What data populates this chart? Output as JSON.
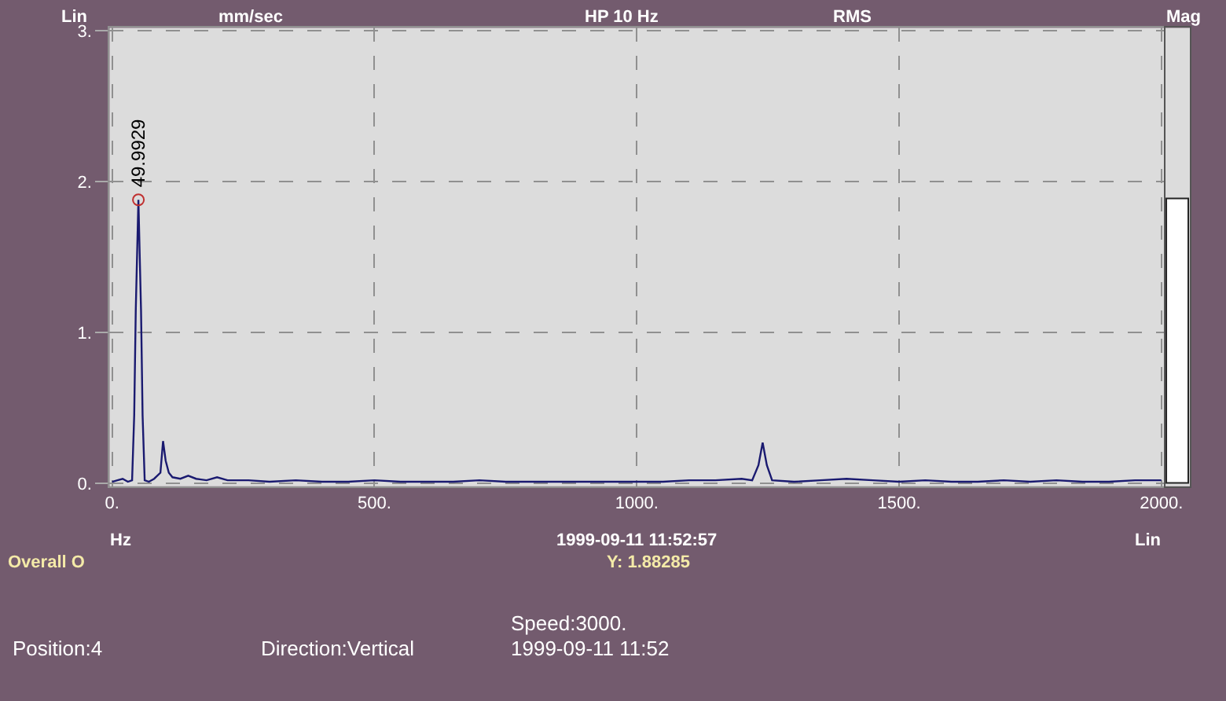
{
  "chart_data": [
    {
      "type": "line",
      "ylabel": "mm/sec",
      "xlabel": "Hz",
      "annotations": [
        "Lin",
        "HP 10 Hz",
        "RMS",
        "Lin",
        "1999-09-11 11:52:57",
        "Overall O",
        "Y: 1.88285",
        "Speed:3000.",
        "Position:4",
        "Direction:Vertical",
        "1999-09-11 11:52",
        {
          "text": "49.9929",
          "x": 50,
          "y": 1.88
        }
      ],
      "series": [
        {
          "color": "#1a1a70",
          "x": [
            0,
            10,
            20,
            30,
            38,
            42,
            45,
            50,
            55,
            58,
            62,
            70,
            80,
            92,
            97,
            102,
            108,
            115,
            130,
            145,
            160,
            180,
            200,
            220,
            260,
            300,
            350,
            400,
            450,
            500,
            550,
            600,
            650,
            700,
            750,
            800,
            850,
            900,
            950,
            1000,
            1050,
            1100,
            1150,
            1200,
            1220,
            1232,
            1240,
            1248,
            1258,
            1300,
            1350,
            1400,
            1450,
            1500,
            1550,
            1600,
            1650,
            1700,
            1750,
            1800,
            1850,
            1900,
            1950,
            2000
          ],
          "values": [
            0.01,
            0.02,
            0.03,
            0.01,
            0.02,
            0.45,
            1.15,
            1.88,
            1.15,
            0.45,
            0.02,
            0.01,
            0.03,
            0.07,
            0.28,
            0.15,
            0.07,
            0.04,
            0.03,
            0.05,
            0.03,
            0.02,
            0.04,
            0.02,
            0.02,
            0.01,
            0.02,
            0.01,
            0.01,
            0.02,
            0.01,
            0.01,
            0.01,
            0.02,
            0.01,
            0.01,
            0.01,
            0.01,
            0.01,
            0.01,
            0.01,
            0.02,
            0.02,
            0.03,
            0.02,
            0.12,
            0.27,
            0.12,
            0.02,
            0.01,
            0.02,
            0.03,
            0.02,
            0.01,
            0.02,
            0.01,
            0.01,
            0.02,
            0.01,
            0.02,
            0.01,
            0.01,
            0.02,
            0.02
          ]
        },
        {
          "type": "scatter",
          "color": "#c03030",
          "marker": "circle",
          "x": [
            50
          ],
          "values": [
            1.88
          ]
        }
      ],
      "xlim": [
        -5,
        2005
      ],
      "xticks": [
        {
          "value": 0,
          "label": "0."
        },
        {
          "value": 500,
          "label": "500."
        },
        {
          "value": 1000,
          "label": "1000."
        },
        {
          "value": 1500,
          "label": "1500."
        },
        {
          "value": 2000,
          "label": "2000."
        }
      ],
      "ylim": [
        -0.02,
        3.02
      ],
      "yticks": [
        {
          "value": 0,
          "label": "0."
        },
        {
          "value": 1,
          "label": "1."
        },
        {
          "value": 2,
          "label": "2."
        },
        {
          "value": 3,
          "label": "3."
        }
      ],
      "grid": true,
      "marker": "none",
      "line_style": "solid"
    },
    {
      "type": "bar",
      "title": "Mag",
      "categories": [
        null
      ],
      "values": [
        1.88
      ],
      "color": "#ffffff",
      "ylim": [
        -0.02,
        3.02
      ],
      "tick_labels": false
    }
  ]
}
